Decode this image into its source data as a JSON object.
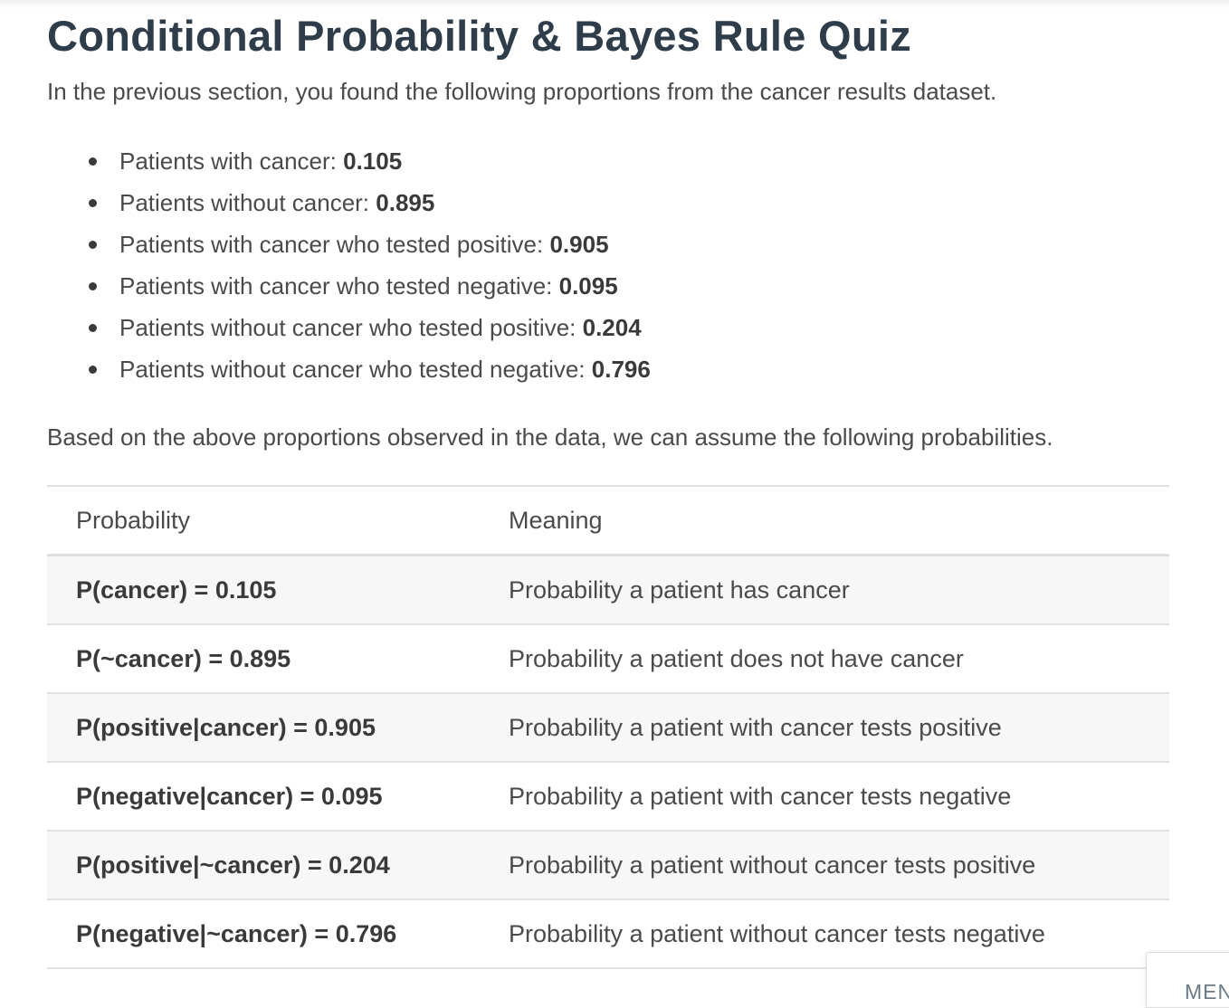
{
  "page": {
    "title": "Conditional Probability & Bayes Rule Quiz",
    "intro": "In the previous section, you found the following proportions from the cancer results dataset.",
    "proportions": [
      {
        "label": "Patients with cancer: ",
        "value": "0.105"
      },
      {
        "label": "Patients without cancer: ",
        "value": "0.895"
      },
      {
        "label": "Patients with cancer who tested positive: ",
        "value": "0.905"
      },
      {
        "label": "Patients with cancer who tested negative: ",
        "value": "0.095"
      },
      {
        "label": "Patients without cancer who tested positive: ",
        "value": "0.204"
      },
      {
        "label": "Patients without cancer who tested negative: ",
        "value": "0.796"
      }
    ],
    "based_text": "Based on the above proportions observed in the data, we can assume the following probabilities.",
    "table": {
      "headers": [
        "Probability",
        "Meaning"
      ],
      "rows": [
        {
          "probability": "P(cancer) = 0.105",
          "meaning": "Probability a patient has cancer"
        },
        {
          "probability": "P(~cancer) = 0.895",
          "meaning": "Probability a patient does not have cancer"
        },
        {
          "probability": "P(positive|cancer) = 0.905",
          "meaning": "Probability a patient with cancer tests positive"
        },
        {
          "probability": "P(negative|cancer) = 0.095",
          "meaning": "Probability a patient with cancer tests negative"
        },
        {
          "probability": "P(positive|~cancer) = 0.204",
          "meaning": "Probability a patient without cancer tests positive"
        },
        {
          "probability": "P(negative|~cancer) = 0.796",
          "meaning": "Probability a patient without cancer tests negative"
        }
      ]
    }
  },
  "menu": {
    "label": "MEN"
  },
  "colors": {
    "heading": "#2e3d49",
    "text": "#4a4a4a",
    "row_stripe": "#f7f7f7",
    "border": "#e0e0e0"
  }
}
